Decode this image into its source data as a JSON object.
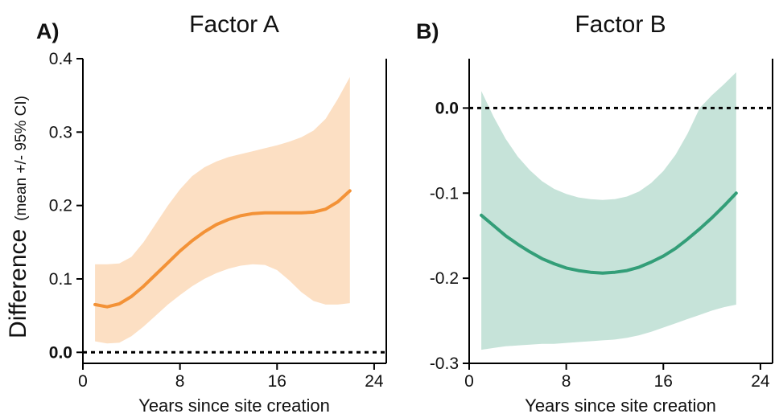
{
  "figure": {
    "ylabel_main": "Difference",
    "ylabel_sub": "(mean +/- 95% CI)"
  },
  "chart_data": [
    {
      "type": "line",
      "panel_label": "A)",
      "title": "Factor A",
      "xlabel": "Years since site creation",
      "xlim": [
        0,
        25
      ],
      "ylim": [
        -0.015,
        0.4
      ],
      "xticks": [
        0,
        8,
        16,
        24
      ],
      "yticks": [
        {
          "value": 0.0,
          "label": "0.0",
          "bold": true
        },
        {
          "value": 0.1,
          "label": "0.1",
          "bold": false
        },
        {
          "value": 0.2,
          "label": "0.2",
          "bold": false
        },
        {
          "value": 0.3,
          "label": "0.3",
          "bold": false
        },
        {
          "value": 0.4,
          "label": "0.4",
          "bold": false
        }
      ],
      "reference_line": 0.0,
      "color_line": "#F39237",
      "color_band": "#FCDFC3",
      "series": [
        {
          "x": [
            1,
            2,
            3,
            4,
            5,
            6,
            7,
            8,
            9,
            10,
            11,
            12,
            13,
            14,
            15,
            16,
            17,
            18,
            19,
            20,
            21,
            22
          ],
          "mean": [
            0.065,
            0.062,
            0.066,
            0.076,
            0.09,
            0.106,
            0.122,
            0.138,
            0.152,
            0.164,
            0.174,
            0.181,
            0.186,
            0.189,
            0.19,
            0.19,
            0.19,
            0.19,
            0.191,
            0.195,
            0.205,
            0.22
          ],
          "upper": [
            0.12,
            0.12,
            0.121,
            0.13,
            0.15,
            0.175,
            0.2,
            0.222,
            0.24,
            0.252,
            0.26,
            0.266,
            0.27,
            0.274,
            0.278,
            0.282,
            0.287,
            0.293,
            0.302,
            0.318,
            0.345,
            0.375
          ],
          "lower": [
            0.015,
            0.012,
            0.013,
            0.022,
            0.035,
            0.05,
            0.065,
            0.078,
            0.09,
            0.1,
            0.108,
            0.114,
            0.118,
            0.12,
            0.119,
            0.112,
            0.098,
            0.082,
            0.07,
            0.065,
            0.065,
            0.067
          ]
        }
      ]
    },
    {
      "type": "line",
      "panel_label": "B)",
      "title": "Factor B",
      "xlabel": "Years since site creation",
      "xlim": [
        0,
        25
      ],
      "ylim": [
        -0.3,
        0.058
      ],
      "xticks": [
        0,
        8,
        16,
        24
      ],
      "yticks": [
        {
          "value": -0.3,
          "label": "-0.3",
          "bold": false
        },
        {
          "value": -0.2,
          "label": "-0.2",
          "bold": false
        },
        {
          "value": -0.1,
          "label": "-0.1",
          "bold": false
        },
        {
          "value": 0.0,
          "label": "0.0",
          "bold": true
        }
      ],
      "reference_line": 0.0,
      "color_line": "#339E78",
      "color_band": "#C6E3D9",
      "series": [
        {
          "x": [
            1,
            2,
            3,
            4,
            5,
            6,
            7,
            8,
            9,
            10,
            11,
            12,
            13,
            14,
            15,
            16,
            17,
            18,
            19,
            20,
            21,
            22
          ],
          "mean": [
            -0.126,
            -0.138,
            -0.15,
            -0.16,
            -0.169,
            -0.177,
            -0.183,
            -0.188,
            -0.191,
            -0.193,
            -0.194,
            -0.193,
            -0.191,
            -0.187,
            -0.181,
            -0.174,
            -0.165,
            -0.154,
            -0.142,
            -0.129,
            -0.115,
            -0.1
          ],
          "upper": [
            0.02,
            -0.01,
            -0.036,
            -0.057,
            -0.073,
            -0.086,
            -0.095,
            -0.101,
            -0.105,
            -0.107,
            -0.108,
            -0.107,
            -0.104,
            -0.098,
            -0.088,
            -0.074,
            -0.055,
            -0.03,
            0.0,
            0.015,
            0.028,
            0.042
          ],
          "lower": [
            -0.284,
            -0.282,
            -0.28,
            -0.279,
            -0.278,
            -0.277,
            -0.277,
            -0.276,
            -0.275,
            -0.274,
            -0.273,
            -0.272,
            -0.27,
            -0.267,
            -0.263,
            -0.258,
            -0.253,
            -0.248,
            -0.243,
            -0.238,
            -0.234,
            -0.231
          ]
        }
      ]
    }
  ]
}
